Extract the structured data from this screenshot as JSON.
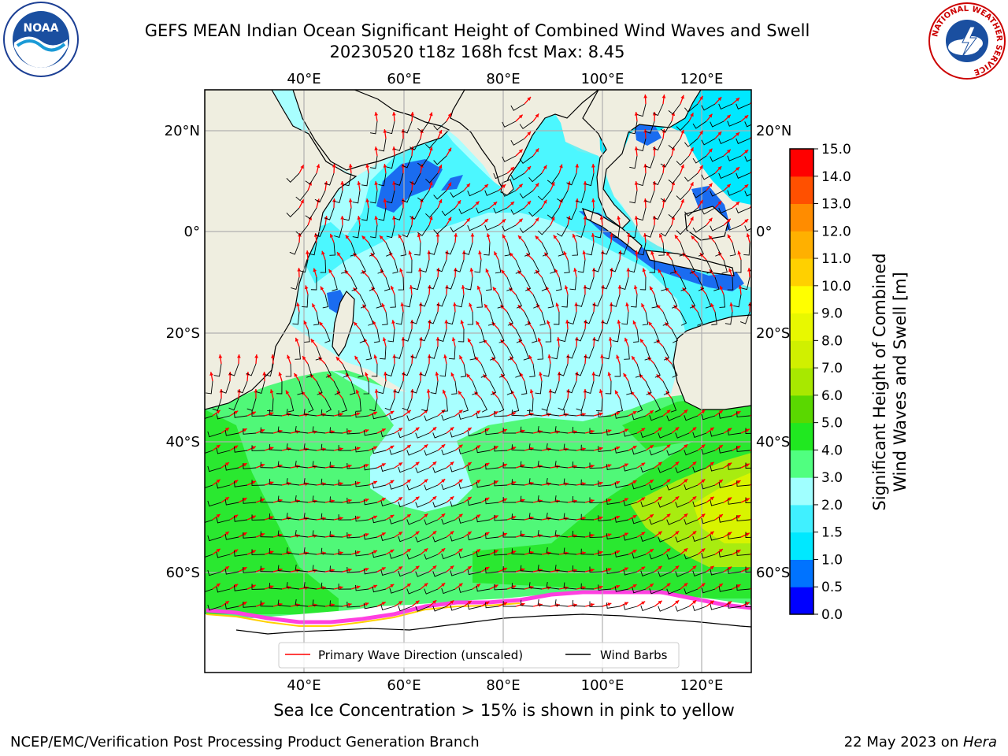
{
  "header": {
    "title_line1": "GEFS MEAN Indian Ocean Significant Height of Combined Wind Waves and Swell",
    "title_line2": "20230520 t18z 168h fcst   Max: 8.45"
  },
  "logos": {
    "left": {
      "icon": "noaa-logo",
      "text": "NOAA"
    },
    "right": {
      "icon": "nws-weather-service-logo",
      "text": "NATIONAL WEATHER SERVICE"
    }
  },
  "map": {
    "lon_top_labels": [
      "40°E",
      "60°E",
      "80°E",
      "100°E",
      "120°E"
    ],
    "lon_bottom_labels": [
      "40°E",
      "60°E",
      "80°E",
      "100°E",
      "120°E"
    ],
    "lat_left_labels": [
      "20°N",
      "0°",
      "20°S",
      "40°S",
      "60°S"
    ],
    "lat_right_labels": [
      "20°N",
      "0°",
      "20°S",
      "40°S",
      "60°S"
    ],
    "legend": [
      {
        "label": "Primary Wave Direction (unscaled)",
        "color": "#ff0000"
      },
      {
        "label": "Wind Barbs",
        "color": "#000000"
      }
    ],
    "colors": {
      "land": "#efeee0",
      "ice_sheet": "#ffffff",
      "grid": "#b0b0b0"
    }
  },
  "colorbar": {
    "label_line1": "Significant Height of Combined",
    "label_line2": "Wind Waves and Swell [m]",
    "ticks": [
      "0.0",
      "0.5",
      "1.0",
      "1.5",
      "2.0",
      "3.0",
      "4.0",
      "5.0",
      "6.0",
      "7.0",
      "8.0",
      "9.0",
      "10.0",
      "11.0",
      "12.0",
      "13.0",
      "14.0",
      "15.0"
    ],
    "colors": [
      "#0000ff",
      "#0073ff",
      "#00e8ff",
      "#40f0ff",
      "#a0ffff",
      "#50ff80",
      "#20e820",
      "#5ad800",
      "#a8e800",
      "#d0f000",
      "#e8f800",
      "#ffff00",
      "#ffd000",
      "#ffb000",
      "#ff8c00",
      "#ff5000",
      "#ff0000"
    ]
  },
  "footer": {
    "ice_note": "Sea Ice Concentration > 15% is shown in pink to yellow",
    "left": "NCEP/EMC/Verification Post Processing Product Generation Branch",
    "right_date": "22 May 2023 on ",
    "right_host": "Hera"
  }
}
